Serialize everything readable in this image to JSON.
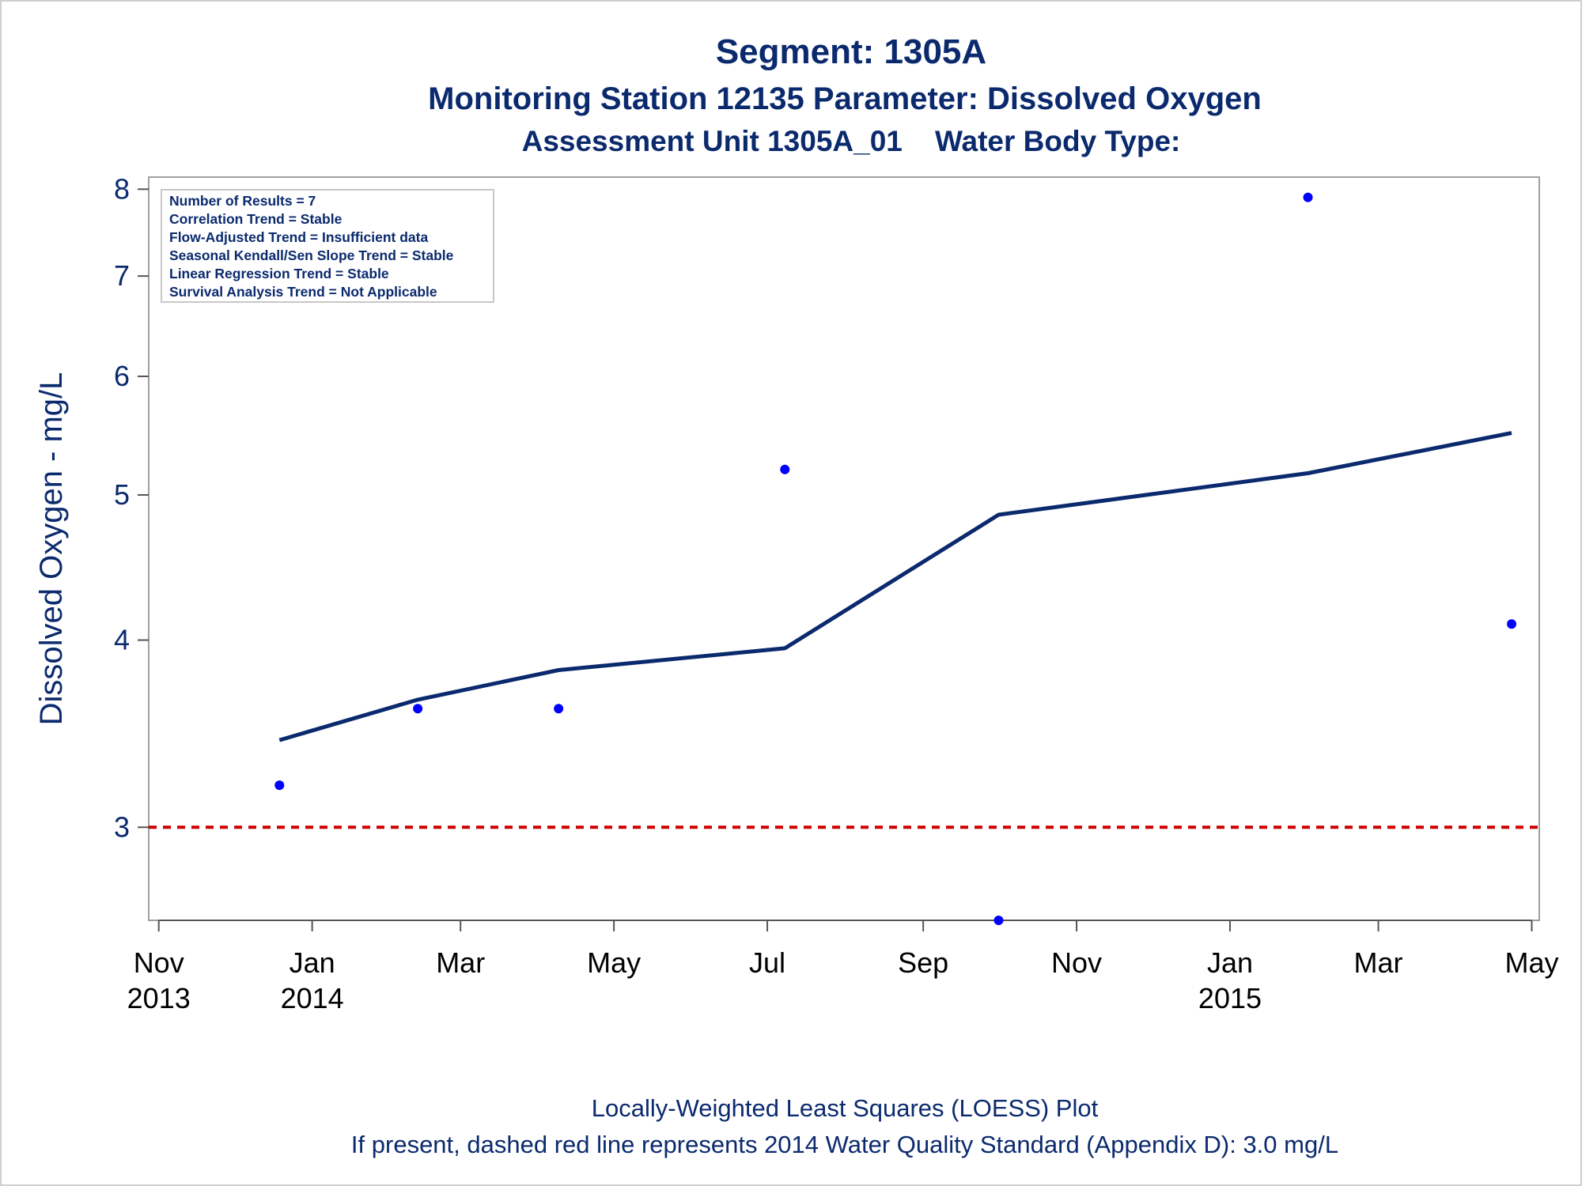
{
  "titles": {
    "line1": "Segment: 1305A",
    "line2": "Monitoring Station 12135 Parameter: Dissolved Oxygen",
    "line3": "Assessment Unit 1305A_01    Water Body Type:"
  },
  "stats_box": [
    "Number of Results = 7",
    "Correlation Trend = Stable",
    "Flow-Adjusted Trend = Insufficient data",
    "Seasonal Kendall/Sen Slope Trend = Stable",
    "Linear Regression Trend = Stable",
    "Survival Analysis Trend = Not Applicable"
  ],
  "footnotes": {
    "line1": "Locally-Weighted Least Squares (LOESS) Plot",
    "line2": "If present, dashed red line represents 2014 Water Quality Standard (Appendix D): 3.0 mg/L"
  },
  "colors": {
    "text": "#0b2a6e",
    "points": "#0000ff",
    "loess": "#0b2a6e",
    "standard": "#cc0000",
    "frame": "#a0a0a0"
  },
  "chart_data": {
    "type": "scatter",
    "ylabel": "Dissolved Oxygen - mg/L",
    "yscale": "log",
    "ylim": [
      2.6,
      8.15
    ],
    "yticks": [
      3,
      4,
      5,
      6,
      7,
      8
    ],
    "xlim": [
      "2013-10-28",
      "2015-05-04"
    ],
    "xticks": [
      {
        "date": "2013-11-01",
        "month": "Nov",
        "year": "2013"
      },
      {
        "date": "2014-01-01",
        "month": "Jan",
        "year": "2014"
      },
      {
        "date": "2014-03-01",
        "month": "Mar",
        "year": ""
      },
      {
        "date": "2014-05-01",
        "month": "May",
        "year": ""
      },
      {
        "date": "2014-07-01",
        "month": "Jul",
        "year": ""
      },
      {
        "date": "2014-09-01",
        "month": "Sep",
        "year": ""
      },
      {
        "date": "2014-11-01",
        "month": "Nov",
        "year": ""
      },
      {
        "date": "2015-01-01",
        "month": "Jan",
        "year": "2015"
      },
      {
        "date": "2015-03-01",
        "month": "Mar",
        "year": ""
      },
      {
        "date": "2015-05-01",
        "month": "May",
        "year": ""
      }
    ],
    "points": [
      {
        "x": "2013-12-19",
        "y": 3.2
      },
      {
        "x": "2014-02-12",
        "y": 3.6
      },
      {
        "x": "2014-04-09",
        "y": 3.6
      },
      {
        "x": "2014-07-08",
        "y": 5.2
      },
      {
        "x": "2014-10-01",
        "y": 2.6
      },
      {
        "x": "2015-02-01",
        "y": 7.9
      },
      {
        "x": "2015-04-23",
        "y": 4.1
      }
    ],
    "loess": [
      {
        "x": "2013-12-19",
        "y": 3.43
      },
      {
        "x": "2014-02-12",
        "y": 3.65
      },
      {
        "x": "2014-04-09",
        "y": 3.82
      },
      {
        "x": "2014-07-08",
        "y": 3.95
      },
      {
        "x": "2014-10-01",
        "y": 4.85
      },
      {
        "x": "2015-02-01",
        "y": 5.17
      },
      {
        "x": "2015-04-23",
        "y": 5.5
      }
    ],
    "reference_line": {
      "y": 3.0,
      "style": "dashed"
    }
  }
}
